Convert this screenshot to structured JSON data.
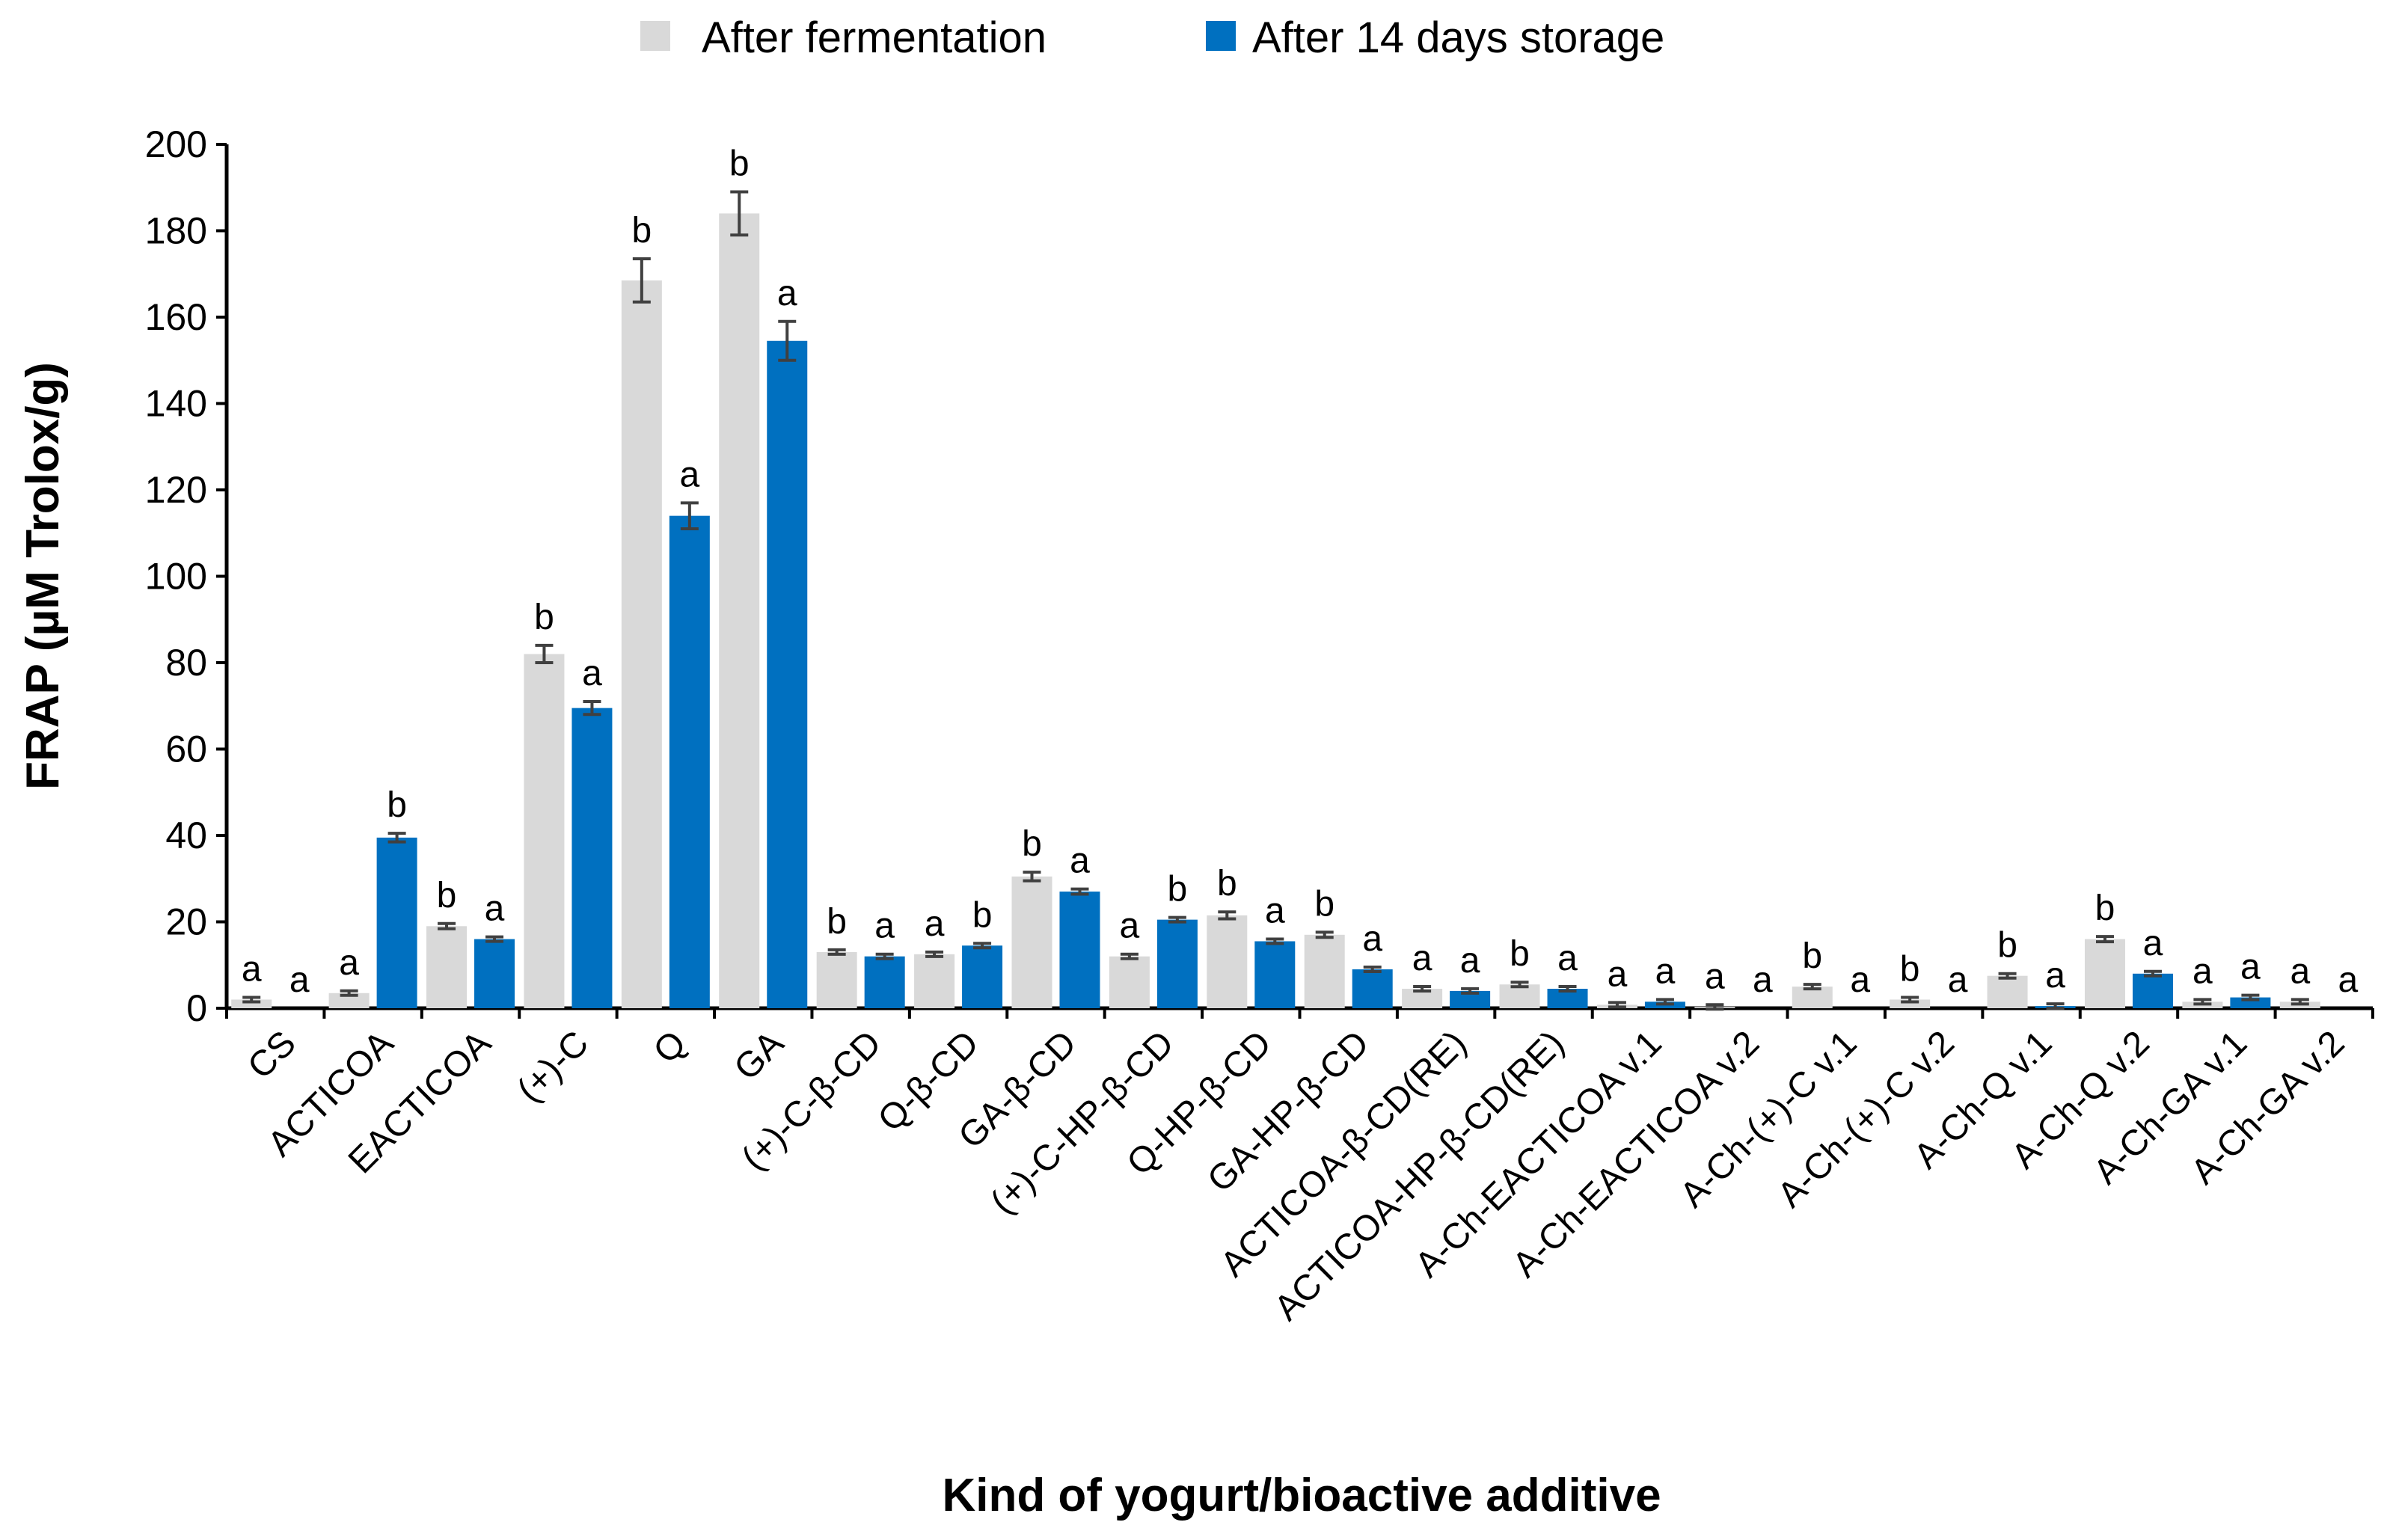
{
  "chart_data": {
    "type": "bar",
    "title": "",
    "xlabel": "Kind of yogurt/bioactive additive",
    "ylabel": "FRAP (µM Trolox/g)",
    "ylim": [
      0,
      200
    ],
    "yticks": [
      "0",
      "20",
      "40",
      "60",
      "80",
      "100",
      "120",
      "140",
      "160",
      "180",
      "200"
    ],
    "legend_position": "top-center",
    "categories": [
      "CS",
      "ACTICOA",
      "EACTICOA",
      "(+)-C",
      "Q",
      "GA",
      "(+)-C-β-CD",
      "Q-β-CD",
      "GA-β-CD",
      "(+)-C-HP-β-CD",
      "Q-HP-β-CD",
      "GA-HP-β-CD",
      "ACTICOA-β-CD(RE)",
      "ACTICOA-HP-β-CD(RE)",
      "A-Ch-EACTICOA v.1",
      "A-Ch-EACTICOA v.2",
      "A-Ch-(+)-C v.1",
      "A-Ch-(+)-C v.2",
      "A-Ch-Q v.1",
      "A-Ch-Q v.2",
      "A-Ch-GA v.1",
      "A-Ch-GA v.2"
    ],
    "series": [
      {
        "name": "After fermentation",
        "color": "#d9d9d9",
        "values": [
          2,
          3.5,
          19,
          82,
          168.5,
          184,
          13,
          12.5,
          30.5,
          12,
          21.5,
          17,
          4.5,
          5.5,
          0.8,
          0.3,
          5,
          2,
          7.5,
          16,
          1.5,
          1.5
        ],
        "errors": [
          0.3,
          0.4,
          0.6,
          2,
          5,
          5,
          0.5,
          0.5,
          1,
          0.4,
          0.8,
          0.6,
          0.3,
          0.3,
          0.1,
          0.1,
          0.3,
          0.2,
          0.4,
          0.6,
          0.2,
          0.2
        ],
        "letters": [
          "a",
          "a",
          "b",
          "b",
          "b",
          "b",
          "b",
          "a",
          "b",
          "a",
          "b",
          "b",
          "a",
          "b",
          "a",
          "a",
          "b",
          "b",
          "b",
          "b",
          "a",
          "a"
        ]
      },
      {
        "name": "After 14 days storage",
        "color": "#0070c0",
        "values": [
          0,
          39.5,
          16,
          69.5,
          114,
          154.5,
          12,
          14.5,
          27,
          20.5,
          15.5,
          9,
          4,
          4.5,
          1.5,
          0,
          0,
          0,
          0.5,
          8,
          2.5,
          0
        ],
        "errors": [
          0,
          1,
          0.5,
          1.5,
          3,
          4.5,
          0.4,
          0.5,
          0.6,
          0.5,
          0.4,
          0.4,
          0.2,
          0.2,
          0.1,
          0,
          0,
          0,
          0.1,
          0.3,
          0.2,
          0
        ],
        "letters": [
          "a",
          "b",
          "a",
          "a",
          "a",
          "a",
          "a",
          "b",
          "a",
          "b",
          "a",
          "a",
          "a",
          "a",
          "a",
          "a",
          "a",
          "a",
          "a",
          "a",
          "a",
          "a"
        ]
      }
    ]
  }
}
